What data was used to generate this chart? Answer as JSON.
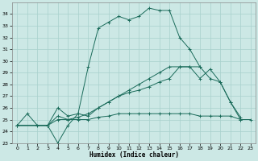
{
  "xlabel": "Humidex (Indice chaleur)",
  "background_color": "#cce8e5",
  "grid_color": "#a8d0cc",
  "line_color": "#1a6b5a",
  "xlim": [
    -0.5,
    23.5
  ],
  "ylim": [
    23,
    35
  ],
  "xticks": [
    0,
    1,
    2,
    3,
    4,
    5,
    6,
    7,
    8,
    9,
    10,
    11,
    12,
    13,
    14,
    15,
    16,
    17,
    18,
    19,
    20,
    21,
    22,
    23
  ],
  "yticks": [
    23,
    24,
    25,
    26,
    27,
    28,
    29,
    30,
    31,
    32,
    33,
    34
  ],
  "series": [
    {
      "x": [
        0,
        1,
        2,
        3,
        4,
        5,
        6,
        7,
        8,
        9,
        10,
        11,
        12,
        13,
        14,
        15,
        16,
        17,
        18
      ],
      "y": [
        24.5,
        25.5,
        24.5,
        24.5,
        23.0,
        24.5,
        25.5,
        29.5,
        32.8,
        33.3,
        33.8,
        33.5,
        33.8,
        34.5,
        34.3,
        34.3,
        32.0,
        31.0,
        29.5
      ]
    },
    {
      "x": [
        0,
        3,
        4,
        5,
        6,
        7,
        8,
        9,
        10,
        11,
        12,
        13,
        14,
        15,
        16,
        17,
        18,
        19,
        20,
        21,
        22
      ],
      "y": [
        24.5,
        24.5,
        26.0,
        25.3,
        25.5,
        25.3,
        26.0,
        26.5,
        27.0,
        27.3,
        27.5,
        27.8,
        28.2,
        28.5,
        29.5,
        29.5,
        29.5,
        28.5,
        28.2,
        26.5,
        25.2
      ]
    },
    {
      "x": [
        0,
        3,
        4,
        5,
        6,
        7,
        8,
        9,
        10,
        11,
        12,
        13,
        14,
        15,
        16,
        17,
        18,
        19,
        20,
        21,
        22,
        23
      ],
      "y": [
        24.5,
        24.5,
        25.0,
        25.0,
        25.0,
        25.0,
        25.2,
        25.3,
        25.5,
        25.5,
        25.5,
        25.5,
        25.5,
        25.5,
        25.5,
        25.5,
        25.3,
        25.3,
        25.3,
        25.3,
        25.0,
        25.0
      ]
    },
    {
      "x": [
        0,
        3,
        4,
        5,
        6,
        7,
        8,
        9,
        10,
        11,
        12,
        13,
        14,
        15,
        16,
        17,
        18,
        19,
        20,
        21,
        22
      ],
      "y": [
        24.5,
        24.5,
        25.3,
        25.0,
        25.2,
        25.5,
        26.0,
        26.5,
        27.0,
        27.5,
        28.0,
        28.5,
        29.0,
        29.5,
        29.5,
        29.5,
        28.5,
        29.3,
        28.2,
        26.5,
        25.0
      ]
    }
  ]
}
